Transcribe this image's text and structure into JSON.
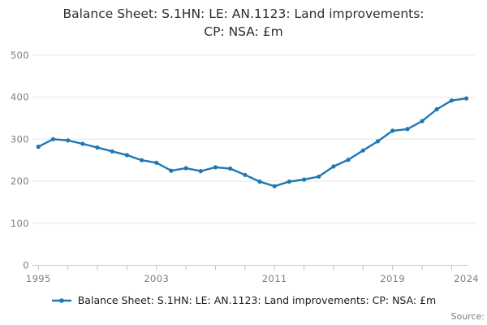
{
  "title_lines": [
    "Balance Sheet: S.1HN: LE: AN.1123: Land improvements:",
    "CP: NSA: £m"
  ],
  "legend": {
    "label": "Balance Sheet: S.1HN: LE: AN.1123: Land improvements: CP: NSA: £m"
  },
  "source_label": "Source:",
  "colors": {
    "accent": "#1f77b4",
    "grid": "#e6e6e6",
    "axis": "#b9c7da",
    "tick_label": "#7f7f7f",
    "title": "#2d2d2d",
    "legend_text": "#1a1a1a",
    "source": "#7a7a7a"
  },
  "chart_data": {
    "type": "line",
    "title": "Balance Sheet: S.1HN: LE: AN.1123: Land improvements: CP: NSA: £m",
    "xlabel": "",
    "ylabel": "",
    "x": [
      1995,
      1996,
      1997,
      1998,
      1999,
      2000,
      2001,
      2002,
      2003,
      2004,
      2005,
      2006,
      2007,
      2008,
      2009,
      2010,
      2011,
      2012,
      2013,
      2014,
      2015,
      2016,
      2017,
      2018,
      2019,
      2020,
      2021,
      2022,
      2023,
      2024
    ],
    "series": [
      {
        "name": "Balance Sheet: S.1HN: LE: AN.1123: Land improvements: CP: NSA: £m",
        "values": [
          282,
          300,
          297,
          289,
          280,
          271,
          262,
          250,
          244,
          225,
          231,
          224,
          233,
          230,
          215,
          199,
          188,
          199,
          204,
          211,
          235,
          251,
          273,
          295,
          320,
          324,
          343,
          371,
          392,
          397
        ]
      }
    ],
    "xlim": [
      1995,
      2024
    ],
    "ylim": [
      0,
      500
    ],
    "y_ticks": [
      0,
      100,
      200,
      300,
      400,
      500
    ],
    "x_ticklabels": [
      1995,
      2003,
      2011,
      2019,
      2024
    ],
    "x_minor_tick_step": 2,
    "grid": "horizontal",
    "marker": "circle",
    "legend_position": "bottom"
  }
}
